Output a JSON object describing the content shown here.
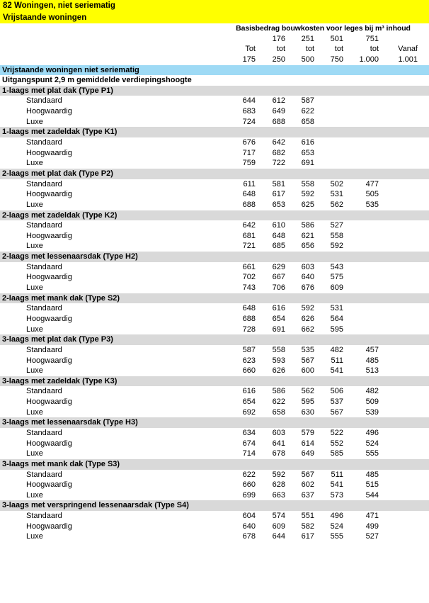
{
  "page": {
    "banner": {
      "line1": "82 Woningen, niet seriematig",
      "line2": "Vrijstaande woningen"
    },
    "columns_header": {
      "title": "Basisbedrag bouwkosten voor leges bij m³ inhoud",
      "row_top": [
        "",
        "176",
        "251",
        "501",
        "751",
        ""
      ],
      "row_mid": [
        "Tot",
        "tot",
        "tot",
        "tot",
        "tot",
        "Vanaf"
      ],
      "row_bottom": [
        "175",
        "250",
        "500",
        "750",
        "1.000",
        "1.001"
      ]
    },
    "section_title": "Vrijstaande woningen niet seriematig",
    "note": "Uitgangspunt 2,9 m gemiddelde verdiepingshoogte",
    "groups": [
      {
        "title": "1-laags met plat dak (Type P1)",
        "rows": [
          {
            "label": "Standaard",
            "values": [
              "644",
              "612",
              "587",
              "",
              "",
              ""
            ]
          },
          {
            "label": "Hoogwaardig",
            "values": [
              "683",
              "649",
              "622",
              "",
              "",
              ""
            ]
          },
          {
            "label": "Luxe",
            "values": [
              "724",
              "688",
              "658",
              "",
              "",
              ""
            ]
          }
        ]
      },
      {
        "title": "1-laags met zadeldak (Type K1)",
        "rows": [
          {
            "label": "Standaard",
            "values": [
              "676",
              "642",
              "616",
              "",
              "",
              ""
            ]
          },
          {
            "label": "Hoogwaardig",
            "values": [
              "717",
              "682",
              "653",
              "",
              "",
              ""
            ]
          },
          {
            "label": "Luxe",
            "values": [
              "759",
              "722",
              "691",
              "",
              "",
              ""
            ]
          }
        ]
      },
      {
        "title": "2-laags met plat dak (Type P2)",
        "rows": [
          {
            "label": "Standaard",
            "values": [
              "611",
              "581",
              "558",
              "502",
              "477",
              ""
            ]
          },
          {
            "label": "Hoogwaardig",
            "values": [
              "648",
              "617",
              "592",
              "531",
              "505",
              ""
            ]
          },
          {
            "label": "Luxe",
            "values": [
              "688",
              "653",
              "625",
              "562",
              "535",
              ""
            ]
          }
        ]
      },
      {
        "title": "2-laags met zadeldak (Type K2)",
        "rows": [
          {
            "label": "Standaard",
            "values": [
              "642",
              "610",
              "586",
              "527",
              "",
              ""
            ]
          },
          {
            "label": "Hoogwaardig",
            "values": [
              "681",
              "648",
              "621",
              "558",
              "",
              ""
            ]
          },
          {
            "label": "Luxe",
            "values": [
              "721",
              "685",
              "656",
              "592",
              "",
              ""
            ]
          }
        ]
      },
      {
        "title": "2-laags met lessenaarsdak (Type H2)",
        "rows": [
          {
            "label": "Standaard",
            "values": [
              "661",
              "629",
              "603",
              "543",
              "",
              ""
            ]
          },
          {
            "label": "Hoogwaardig",
            "values": [
              "702",
              "667",
              "640",
              "575",
              "",
              ""
            ]
          },
          {
            "label": "Luxe",
            "values": [
              "743",
              "706",
              "676",
              "609",
              "",
              ""
            ]
          }
        ]
      },
      {
        "title": "2-laags met mank dak (Type S2)",
        "rows": [
          {
            "label": "Standaard",
            "values": [
              "648",
              "616",
              "592",
              "531",
              "",
              ""
            ]
          },
          {
            "label": "Hoogwaardig",
            "values": [
              "688",
              "654",
              "626",
              "564",
              "",
              ""
            ]
          },
          {
            "label": "Luxe",
            "values": [
              "728",
              "691",
              "662",
              "595",
              "",
              ""
            ]
          }
        ]
      },
      {
        "title": "3-laags met plat dak (Type P3)",
        "rows": [
          {
            "label": "Standaard",
            "values": [
              "587",
              "558",
              "535",
              "482",
              "457",
              ""
            ]
          },
          {
            "label": "Hoogwaardig",
            "values": [
              "623",
              "593",
              "567",
              "511",
              "485",
              ""
            ]
          },
          {
            "label": "Luxe",
            "values": [
              "660",
              "626",
              "600",
              "541",
              "513",
              ""
            ]
          }
        ]
      },
      {
        "title": "3-laags met zadeldak (Type K3)",
        "rows": [
          {
            "label": "Standaard",
            "values": [
              "616",
              "586",
              "562",
              "506",
              "482",
              ""
            ]
          },
          {
            "label": "Hoogwaardig",
            "values": [
              "654",
              "622",
              "595",
              "537",
              "509",
              ""
            ]
          },
          {
            "label": "Luxe",
            "values": [
              "692",
              "658",
              "630",
              "567",
              "539",
              ""
            ]
          }
        ]
      },
      {
        "title": "3-laags met lessenaarsdak (Type H3)",
        "rows": [
          {
            "label": "Standaard",
            "values": [
              "634",
              "603",
              "579",
              "522",
              "496",
              ""
            ]
          },
          {
            "label": "Hoogwaardig",
            "values": [
              "674",
              "641",
              "614",
              "552",
              "524",
              ""
            ]
          },
          {
            "label": "Luxe",
            "values": [
              "714",
              "678",
              "649",
              "585",
              "555",
              ""
            ]
          }
        ]
      },
      {
        "title": "3-laags met mank dak (Type S3)",
        "rows": [
          {
            "label": "Standaard",
            "values": [
              "622",
              "592",
              "567",
              "511",
              "485",
              ""
            ]
          },
          {
            "label": "Hoogwaardig",
            "values": [
              "660",
              "628",
              "602",
              "541",
              "515",
              ""
            ]
          },
          {
            "label": "Luxe",
            "values": [
              "699",
              "663",
              "637",
              "573",
              "544",
              ""
            ]
          }
        ]
      },
      {
        "title": "3-laags met verspringend lessenaarsdak (Type  S4)",
        "rows": [
          {
            "label": "Standaard",
            "values": [
              "604",
              "574",
              "551",
              "496",
              "471",
              ""
            ]
          },
          {
            "label": "Hoogwaardig",
            "values": [
              "640",
              "609",
              "582",
              "524",
              "499",
              ""
            ]
          },
          {
            "label": "Luxe",
            "values": [
              "678",
              "644",
              "617",
              "555",
              "527",
              ""
            ]
          }
        ]
      }
    ],
    "colors": {
      "banner_bg": "#ffff00",
      "section_bg": "#9edaf5",
      "group_bg": "#d9d9d9"
    }
  }
}
